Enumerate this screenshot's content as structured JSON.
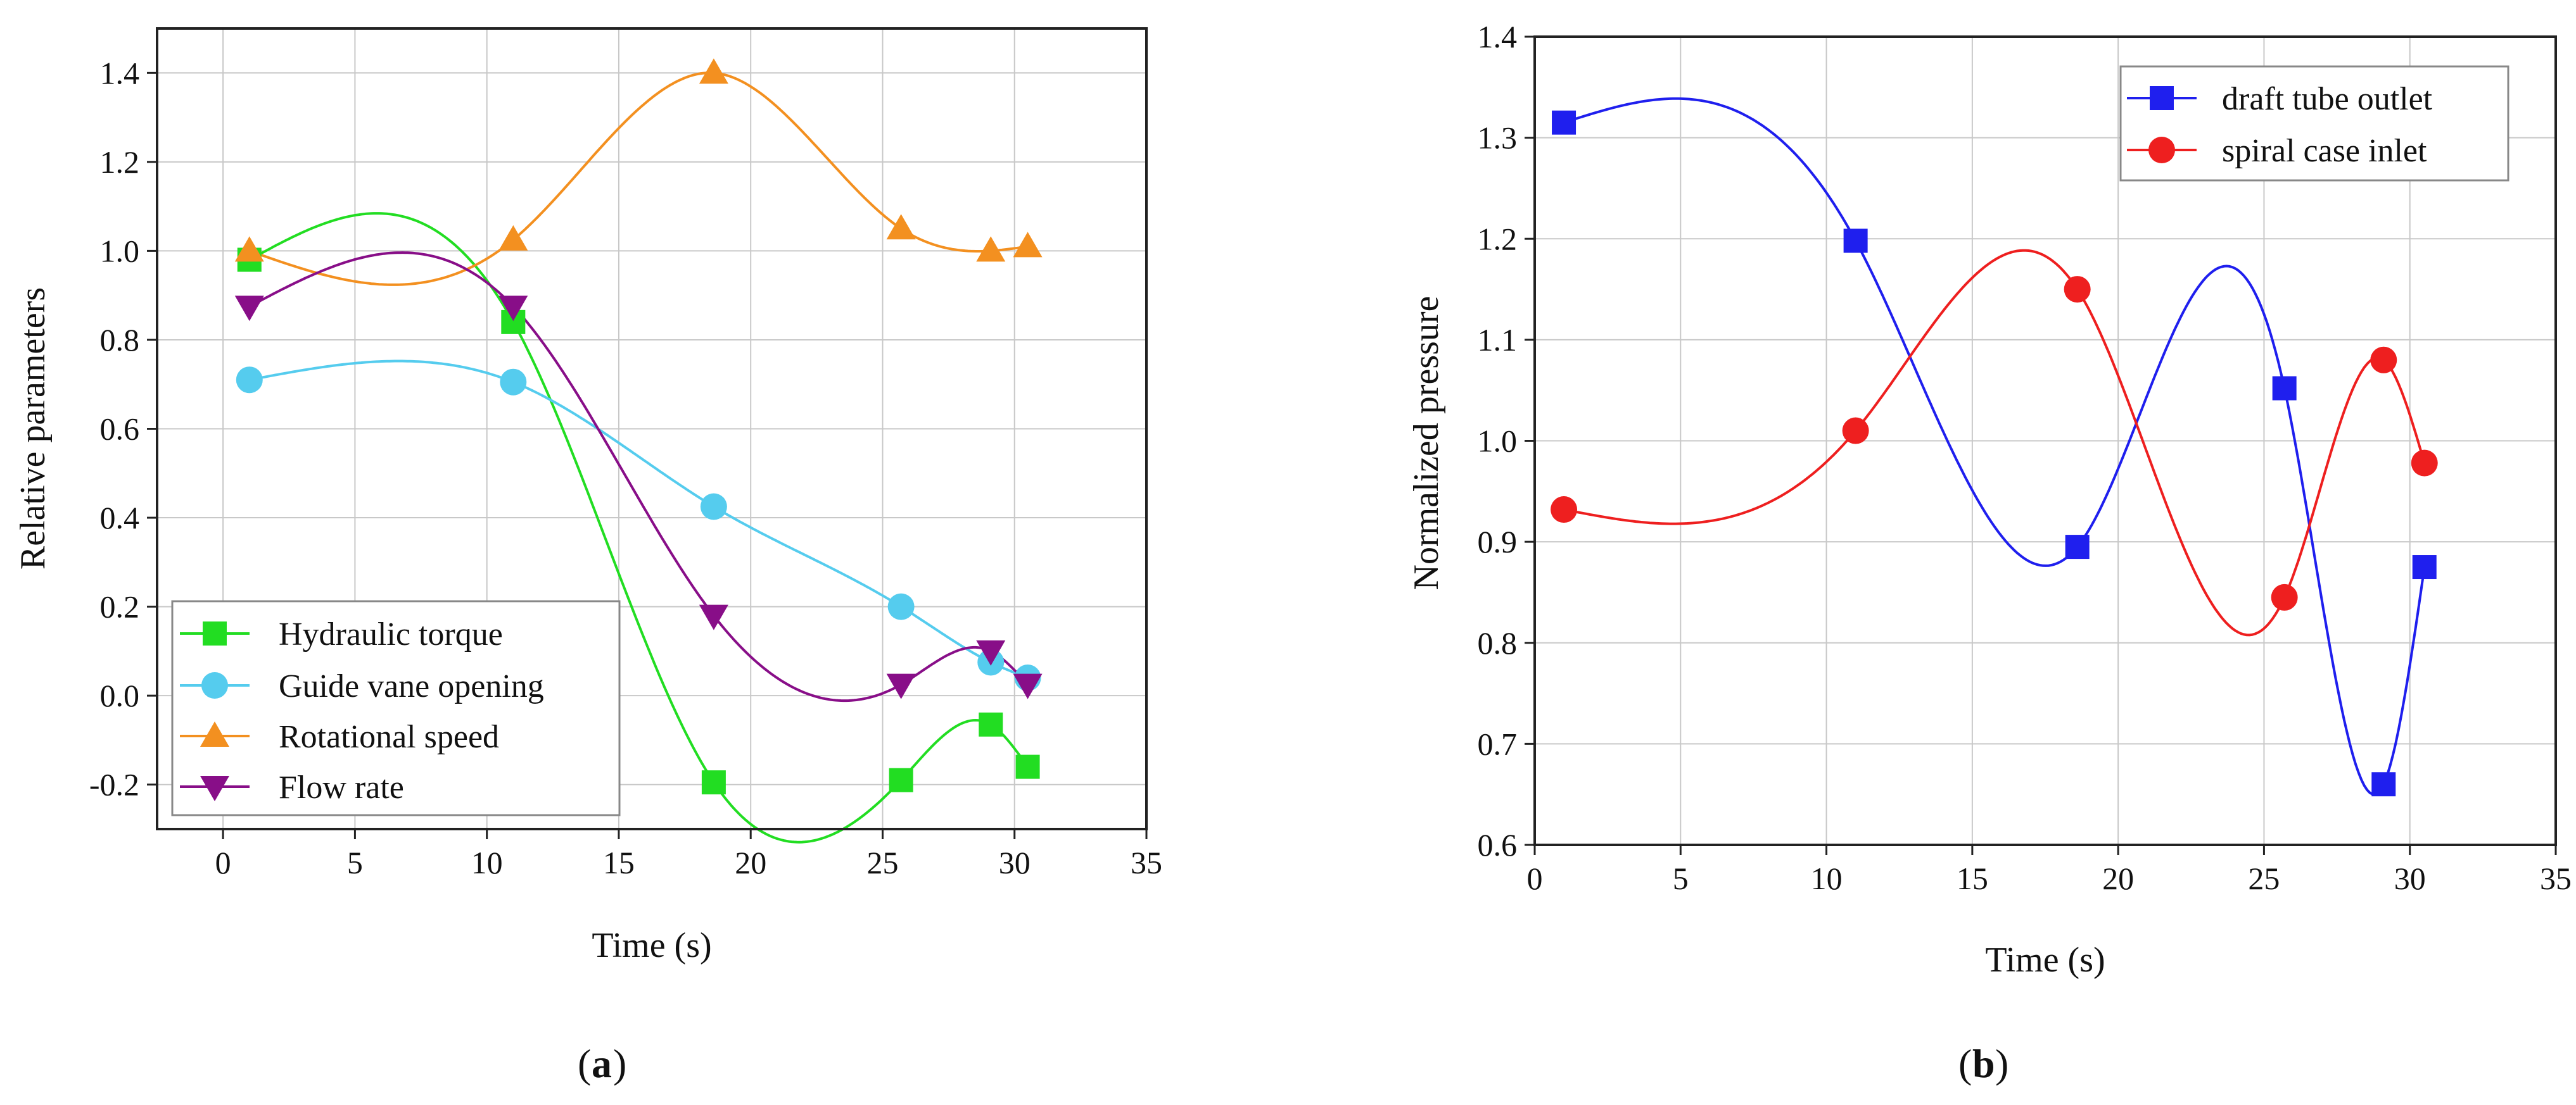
{
  "chart_data": [
    {
      "id": "a",
      "type": "line",
      "panel_label": "(a)",
      "panel_letter": "a",
      "xlabel": "Time (s)",
      "ylabel": "Relative parameters",
      "xlim": [
        -2.5,
        35
      ],
      "ylim": [
        -0.3,
        1.5
      ],
      "xticks": [
        0,
        5,
        10,
        15,
        20,
        25,
        30,
        35
      ],
      "xtick_labels": [
        "0",
        "5",
        "10",
        "15",
        "20",
        "25",
        "30",
        "35"
      ],
      "yticks": [
        -0.2,
        0.0,
        0.2,
        0.4,
        0.6,
        0.8,
        1.0,
        1.2,
        1.4
      ],
      "ytick_labels": [
        "-0.2",
        "0.0",
        "0.2",
        "0.4",
        "0.6",
        "0.8",
        "1.0",
        "1.2",
        "1.4"
      ],
      "grid": true,
      "legend_position": "bottom-left",
      "series": [
        {
          "name": "Hydraulic torque",
          "color": "#22dd22",
          "marker": "square",
          "x": [
            1.0,
            11.0,
            18.6,
            25.7,
            29.1,
            30.5
          ],
          "y": [
            0.98,
            0.84,
            -0.195,
            -0.19,
            -0.065,
            -0.16
          ]
        },
        {
          "name": "Guide vane opening",
          "color": "#55ccee",
          "marker": "circle",
          "x": [
            1.0,
            11.0,
            18.6,
            25.7,
            29.1,
            30.5
          ],
          "y": [
            0.71,
            0.705,
            0.425,
            0.2,
            0.075,
            0.04
          ]
        },
        {
          "name": "Rotational speed",
          "color": "#f39020",
          "marker": "triangle-up",
          "x": [
            1.0,
            11.0,
            18.6,
            25.7,
            29.1,
            30.5
          ],
          "y": [
            1.0,
            1.025,
            1.4,
            1.05,
            1.0,
            1.01
          ]
        },
        {
          "name": "Flow rate",
          "color": "#880e88",
          "marker": "triangle-down",
          "x": [
            1.0,
            11.0,
            18.6,
            25.7,
            29.1,
            30.5
          ],
          "y": [
            0.875,
            0.875,
            0.18,
            0.025,
            0.1,
            0.025
          ]
        }
      ]
    },
    {
      "id": "b",
      "type": "line",
      "panel_label": "(b)",
      "panel_letter": "b",
      "xlabel": "Time (s)",
      "ylabel": "Normalized pressure",
      "xlim": [
        0,
        35
      ],
      "ylim": [
        0.6,
        1.4
      ],
      "xticks": [
        0,
        5,
        10,
        15,
        20,
        25,
        30,
        35
      ],
      "xtick_labels": [
        "0",
        "5",
        "10",
        "15",
        "20",
        "25",
        "30",
        "35"
      ],
      "yticks": [
        0.6,
        0.7,
        0.8,
        0.9,
        1.0,
        1.1,
        1.2,
        1.3,
        1.4
      ],
      "ytick_labels": [
        "0.6",
        "0.7",
        "0.8",
        "0.9",
        "1.0",
        "1.1",
        "1.2",
        "1.3",
        "1.4"
      ],
      "grid": true,
      "legend_position": "top-right",
      "series": [
        {
          "name": "draft tube outlet",
          "color": "#1f1fee",
          "marker": "square",
          "x": [
            1.0,
            11.0,
            18.6,
            25.7,
            29.1,
            30.5
          ],
          "y": [
            1.315,
            1.198,
            0.895,
            1.052,
            0.66,
            0.875
          ]
        },
        {
          "name": "spiral case inlet",
          "color": "#ee1f1f",
          "marker": "circle",
          "x": [
            1.0,
            11.0,
            18.6,
            25.7,
            29.1,
            30.5
          ],
          "y": [
            0.932,
            1.01,
            1.15,
            0.845,
            1.08,
            0.978
          ]
        }
      ]
    }
  ]
}
